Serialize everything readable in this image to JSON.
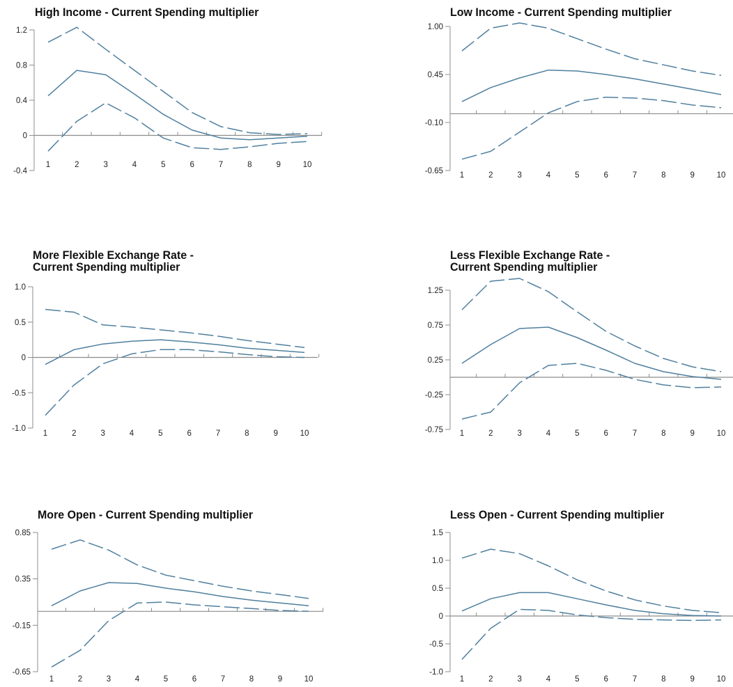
{
  "colors": {
    "series": "#4f7f9e",
    "axis": "#8c8c8c",
    "text": "#222222"
  },
  "chart_data": [
    {
      "type": "line",
      "title": "High Income - Current Spending multiplier",
      "x": [
        1,
        2,
        3,
        4,
        5,
        6,
        7,
        8,
        9,
        10
      ],
      "ylim": [
        -0.4,
        1.2
      ],
      "yticks": [
        "1.2",
        "0.8",
        "0.4",
        "0",
        "-0.4"
      ],
      "ytick_values": [
        1.2,
        0.8,
        0.4,
        0,
        -0.4
      ],
      "series": [
        {
          "style": "dashed",
          "values": [
            1.06,
            1.23,
            0.98,
            0.74,
            0.5,
            0.26,
            0.1,
            0.03,
            0.01,
            0.02
          ]
        },
        {
          "style": "solid",
          "values": [
            0.45,
            0.74,
            0.69,
            0.47,
            0.24,
            0.06,
            -0.03,
            -0.05,
            -0.03,
            -0.01
          ]
        },
        {
          "style": "dashed",
          "values": [
            -0.18,
            0.16,
            0.37,
            0.2,
            -0.03,
            -0.14,
            -0.16,
            -0.13,
            -0.09,
            -0.07
          ]
        }
      ]
    },
    {
      "type": "line",
      "title": "Low Income - Current Spending multiplier",
      "x": [
        1,
        2,
        3,
        4,
        5,
        6,
        7,
        8,
        9,
        10
      ],
      "ylim": [
        -0.65,
        1.0
      ],
      "yticks": [
        "1.00",
        "0.45",
        "-0.10",
        "-0.65"
      ],
      "ytick_values": [
        1.0,
        0.45,
        -0.1,
        -0.65
      ],
      "series": [
        {
          "style": "dashed",
          "values": [
            0.72,
            0.98,
            1.04,
            0.98,
            0.86,
            0.74,
            0.63,
            0.56,
            0.49,
            0.44
          ]
        },
        {
          "style": "solid",
          "values": [
            0.14,
            0.3,
            0.41,
            0.5,
            0.49,
            0.45,
            0.4,
            0.34,
            0.28,
            0.22
          ]
        },
        {
          "style": "dashed",
          "values": [
            -0.52,
            -0.43,
            -0.21,
            0.01,
            0.14,
            0.19,
            0.18,
            0.15,
            0.1,
            0.07
          ]
        }
      ]
    },
    {
      "type": "line",
      "title": "More Flexible Exchange Rate -\nCurrent Spending multiplier",
      "x": [
        1,
        2,
        3,
        4,
        5,
        6,
        7,
        8,
        9,
        10
      ],
      "ylim": [
        -1.0,
        1.0
      ],
      "yticks": [
        "1.0",
        "0.5",
        "0",
        "-0.5",
        "-1.0"
      ],
      "ytick_values": [
        1.0,
        0.5,
        0,
        -0.5,
        -1.0
      ],
      "series": [
        {
          "style": "dashed",
          "values": [
            0.68,
            0.64,
            0.46,
            0.43,
            0.39,
            0.35,
            0.3,
            0.24,
            0.19,
            0.14
          ]
        },
        {
          "style": "solid",
          "values": [
            -0.1,
            0.11,
            0.19,
            0.23,
            0.25,
            0.22,
            0.18,
            0.13,
            0.1,
            0.07
          ]
        },
        {
          "style": "dashed",
          "values": [
            -0.82,
            -0.39,
            -0.09,
            0.05,
            0.11,
            0.11,
            0.08,
            0.04,
            0.01,
            0.0
          ]
        }
      ]
    },
    {
      "type": "line",
      "title": "Less Flexible Exchange Rate -\nCurrent Spending multiplier",
      "x": [
        1,
        2,
        3,
        4,
        5,
        6,
        7,
        8,
        9,
        10
      ],
      "ylim": [
        -0.75,
        1.25
      ],
      "yticks": [
        "1.25",
        "0.75",
        "0.25",
        "-0.25",
        "-0.75"
      ],
      "ytick_values": [
        1.25,
        0.75,
        0.25,
        -0.25,
        -0.75
      ],
      "series": [
        {
          "style": "dashed",
          "values": [
            0.97,
            1.38,
            1.42,
            1.23,
            0.94,
            0.66,
            0.45,
            0.27,
            0.15,
            0.08
          ]
        },
        {
          "style": "solid",
          "values": [
            0.2,
            0.47,
            0.7,
            0.72,
            0.57,
            0.39,
            0.2,
            0.08,
            0.01,
            -0.03
          ]
        },
        {
          "style": "dashed",
          "values": [
            -0.6,
            -0.5,
            -0.08,
            0.17,
            0.2,
            0.1,
            -0.03,
            -0.11,
            -0.15,
            -0.14
          ]
        }
      ]
    },
    {
      "type": "line",
      "title": "More Open - Current Spending multiplier",
      "x": [
        1,
        2,
        3,
        4,
        5,
        6,
        7,
        8,
        9,
        10
      ],
      "ylim": [
        -0.65,
        0.85
      ],
      "yticks": [
        "0.85",
        "0.35",
        "-0.15",
        "-0.65"
      ],
      "ytick_values": [
        0.85,
        0.35,
        -0.15,
        -0.65
      ],
      "series": [
        {
          "style": "dashed",
          "values": [
            0.67,
            0.77,
            0.66,
            0.5,
            0.39,
            0.33,
            0.27,
            0.22,
            0.18,
            0.14
          ]
        },
        {
          "style": "solid",
          "values": [
            0.06,
            0.22,
            0.31,
            0.3,
            0.25,
            0.21,
            0.16,
            0.12,
            0.09,
            0.06
          ]
        },
        {
          "style": "dashed",
          "values": [
            -0.6,
            -0.42,
            -0.1,
            0.09,
            0.1,
            0.07,
            0.05,
            0.03,
            0.01,
            0.0
          ]
        }
      ]
    },
    {
      "type": "line",
      "title": "Less Open - Current Spending multiplier",
      "x": [
        1,
        2,
        3,
        4,
        5,
        6,
        7,
        8,
        9,
        10
      ],
      "ylim": [
        -1.0,
        1.5
      ],
      "yticks": [
        "1.5",
        "1.0",
        "0.5",
        "0",
        "-0.5",
        "-1.0"
      ],
      "ytick_values": [
        1.5,
        1.0,
        0.5,
        0,
        -0.5,
        -1.0
      ],
      "series": [
        {
          "style": "dashed",
          "values": [
            1.04,
            1.2,
            1.12,
            0.9,
            0.65,
            0.45,
            0.29,
            0.18,
            0.1,
            0.06
          ]
        },
        {
          "style": "solid",
          "values": [
            0.09,
            0.31,
            0.42,
            0.42,
            0.31,
            0.2,
            0.1,
            0.04,
            0.01,
            0.0
          ]
        },
        {
          "style": "dashed",
          "values": [
            -0.78,
            -0.22,
            0.12,
            0.1,
            0.02,
            -0.03,
            -0.06,
            -0.07,
            -0.08,
            -0.07
          ]
        }
      ]
    }
  ]
}
